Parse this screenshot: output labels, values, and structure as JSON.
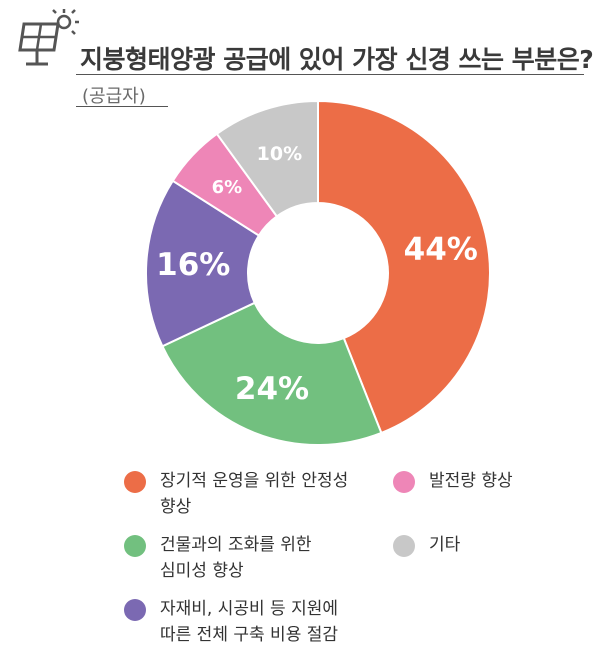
{
  "title": "지붕형태양광 공급에 있어 가장 신경 쓰는 부분은?",
  "subtitle": "(공급자)",
  "header_icon": "solar-panel-icon",
  "chart_data": {
    "type": "pie",
    "donut": true,
    "title": "지붕형태양광 공급에 있어 가장 신경 쓰는 부분은?",
    "subtitle": "(공급자)",
    "categories": [
      "장기적 운영을 위한 안정성 향상",
      "건물과의 조화를 위한 심미성 향상",
      "자재비, 시공비 등 지원에 따른 전체 구축 비용 절감",
      "발전량 향상",
      "기타"
    ],
    "values": [
      44,
      24,
      16,
      6,
      10
    ],
    "labels": [
      "44%",
      "24%",
      "16%",
      "6%",
      "10%"
    ],
    "colors": [
      "#EC6D47",
      "#72C07F",
      "#7B69B2",
      "#EE86B7",
      "#C8C8C8"
    ],
    "legend_position": "bottom"
  },
  "legend": [
    {
      "label": "장기적 운영을 위한 안정성\n향상",
      "color": "#EC6D47"
    },
    {
      "label": "발전량 향상",
      "color": "#EE86B7"
    },
    {
      "label": "건물과의 조화를 위한\n심미성 향상",
      "color": "#72C07F"
    },
    {
      "label": "기타",
      "color": "#C8C8C8"
    },
    {
      "label": "자재비, 시공비 등 지원에\n따른 전체 구축 비용 절감",
      "color": "#7B69B2"
    }
  ]
}
